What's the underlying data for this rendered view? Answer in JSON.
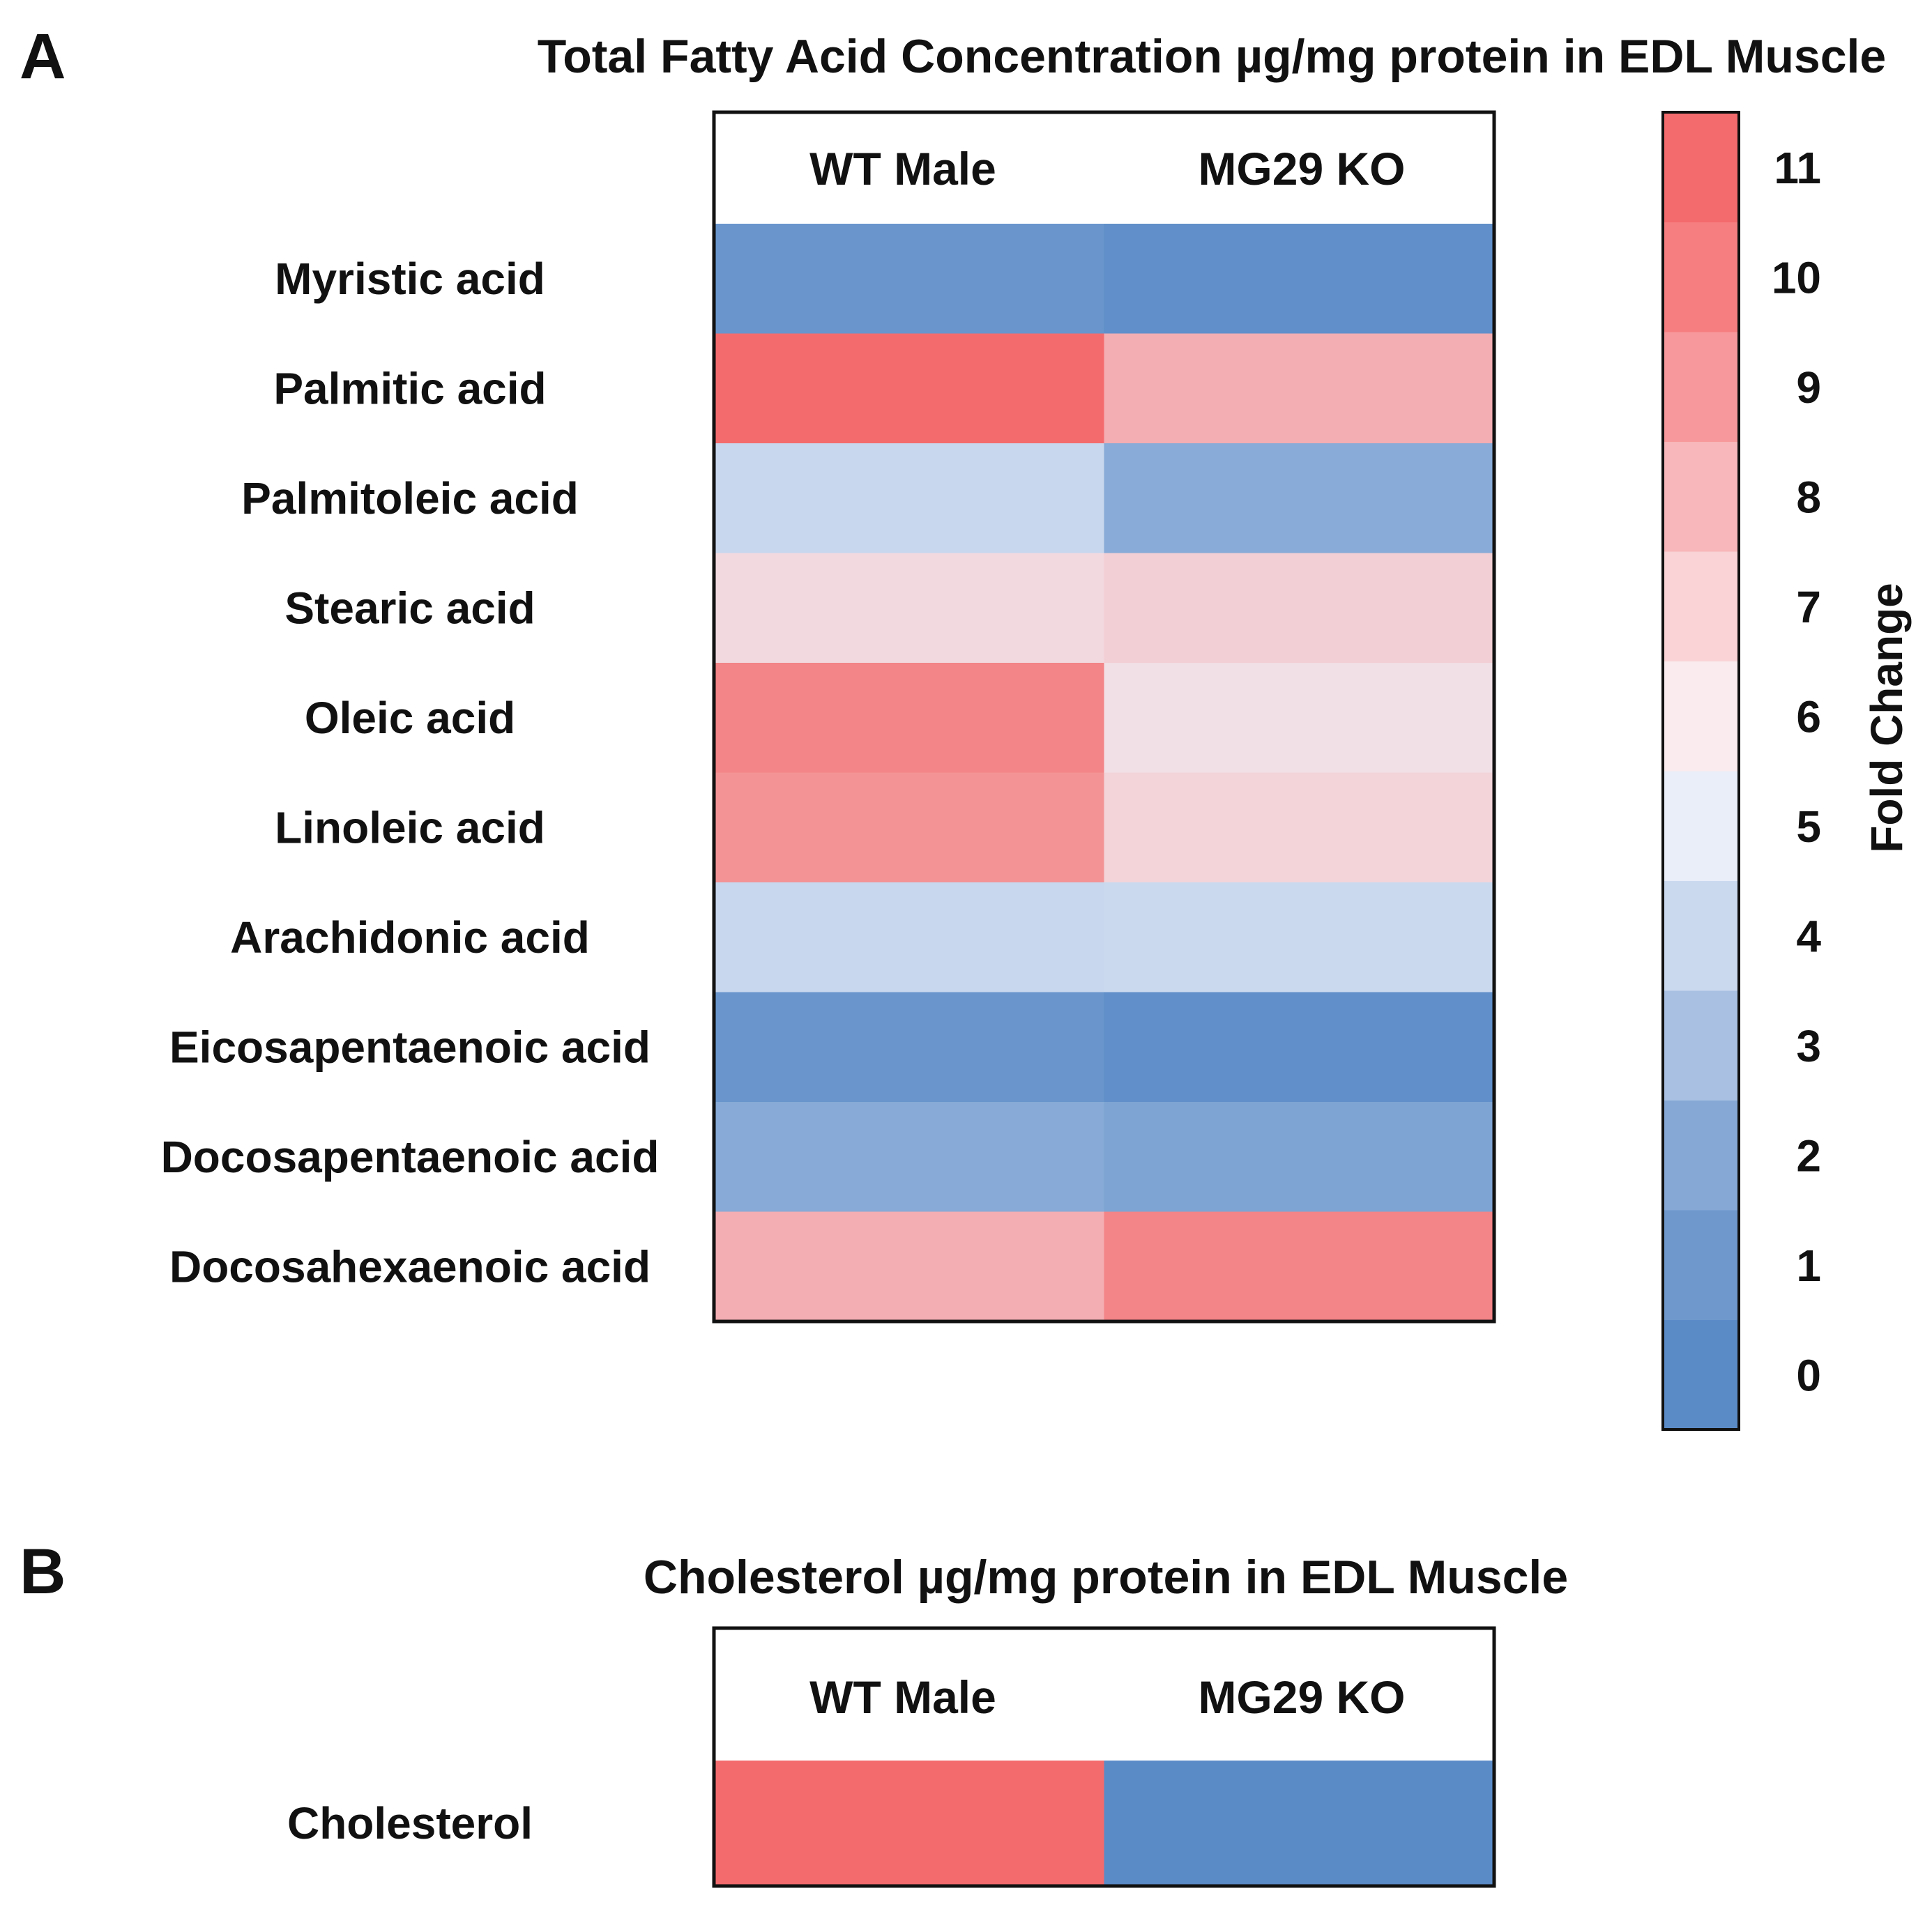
{
  "colors": {
    "low": "#5b8bc7",
    "mid": "#f1f4fb",
    "high": "#f46b6d",
    "border": "#111111"
  },
  "chart_data": [
    {
      "panel": "A",
      "type": "heatmap",
      "title": "Total Fatty Acid Concentration µg/mg protein in EDL Muscle",
      "columns": [
        "WT Male",
        "MG29 KO"
      ],
      "rows": [
        "Myristic acid",
        "Palmitic acid",
        "Palmitoleic acid",
        "Stearic acid",
        "Oleic acid",
        "Linoleic acid",
        "Arachidonic acid",
        "Eicosapentaenoic acid",
        "Docosapentaenoic acid",
        "Docosahexaenoic acid"
      ],
      "values": [
        [
          0.5,
          0.2
        ],
        [
          11.0,
          8.3
        ],
        [
          4.0,
          1.7
        ],
        [
          6.6,
          7.0
        ],
        [
          10.0,
          6.3
        ],
        [
          9.4,
          6.8
        ],
        [
          4.0,
          4.1
        ],
        [
          0.5,
          0.2
        ],
        [
          1.6,
          1.3
        ],
        [
          8.3,
          10.0
        ]
      ],
      "colorbar": {
        "label": "Fold Change",
        "ticks": [
          0,
          1,
          2,
          3,
          4,
          5,
          6,
          7,
          8,
          9,
          10,
          11
        ],
        "range": [
          0,
          11
        ],
        "levels": [
          "#5b8bc7",
          "#6f98cc",
          "#86a8d5",
          "#a9c0e2",
          "#cbd9ef",
          "#e9eef8",
          "#faecee",
          "#f9d3d6",
          "#f8b7ba",
          "#f7999c",
          "#f67e80",
          "#f46b6d"
        ]
      },
      "legend": "right"
    },
    {
      "panel": "B",
      "type": "heatmap",
      "title": "Cholesterol  µg/mg protein in EDL Muscle",
      "columns": [
        "WT Male",
        "MG29 KO"
      ],
      "rows": [
        "Cholesterol"
      ],
      "values": [
        [
          11.0,
          0.0
        ]
      ]
    }
  ]
}
